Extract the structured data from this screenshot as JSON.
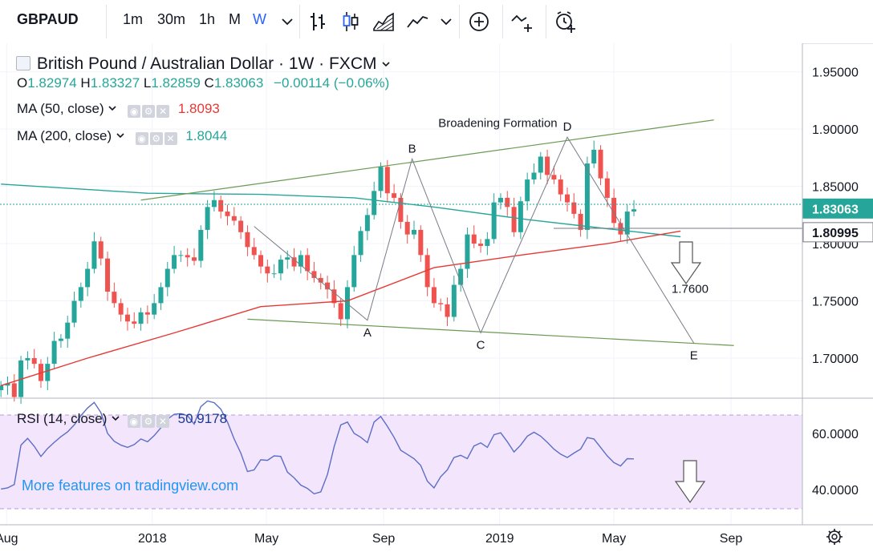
{
  "toolbar": {
    "symbol": "GBPAUD",
    "intervals": [
      "1m",
      "30m",
      "1h",
      "M",
      "W"
    ],
    "active_interval": "W",
    "icons": [
      "chevron-down-icon",
      "bar-chart-icon",
      "candles-icon",
      "area-chart-icon",
      "line-chart-icon",
      "chevron-down-icon",
      "add-indicator-icon",
      "compare-icon",
      "alert-icon"
    ]
  },
  "header": {
    "title": "British Pound / Australian Dollar · 1W · FXCM",
    "ohlc": {
      "o_label": "O",
      "o": "1.82974",
      "h_label": "H",
      "h": "1.83327",
      "l_label": "L",
      "l": "1.82859",
      "c_label": "C",
      "c": "1.83063",
      "change": "−0.00114 (−0.06%)"
    },
    "ma50_label": "MA (50, close)",
    "ma50_value": "1.8093",
    "ma200_label": "MA (200, close)",
    "ma200_value": "1.8044",
    "rsi_label": "RSI (14, close)",
    "rsi_value": "50.9178"
  },
  "watermark": "More features on tradingview.com",
  "colors": {
    "up": "#26a69a",
    "down": "#ef5350",
    "ma50": "#e53935",
    "ma200": "#26a69a",
    "rsi": "#5b6ec7",
    "rsi_band": "#f3e5fb",
    "trend": "#6b9a53",
    "watermark": "#2196f3"
  },
  "chart_data": [
    {
      "type": "candlestick",
      "title": "British Pound / Australian Dollar · 1W · FXCM",
      "y_ticks": [
        "1.95000",
        "1.90000",
        "1.85000",
        "1.80000",
        "1.75000",
        "1.70000"
      ],
      "y_tick_values": [
        1.95,
        1.9,
        1.85,
        1.8,
        1.75,
        1.7
      ],
      "ylim": [
        1.665,
        1.975
      ],
      "x_ticks": [
        "Aug",
        "2018",
        "May",
        "Sep",
        "2019",
        "May",
        "Sep"
      ],
      "x_tick_dates": [
        "2017-08-01",
        "2018-01-01",
        "2018-05-01",
        "2018-09-01",
        "2019-01-01",
        "2019-05-01",
        "2019-09-01"
      ],
      "xlim": [
        "2017-07-25",
        "2019-11-15"
      ],
      "price_labels": [
        {
          "text": "1.83063",
          "value": 1.83063,
          "color": "#26a69a"
        },
        {
          "text": "1.80995",
          "value": 1.80995,
          "color": "#ffffff"
        }
      ],
      "annotations": {
        "title": "Broadening Formation",
        "points": [
          {
            "label": "A",
            "date": "2018-08-15",
            "value": 1.733
          },
          {
            "label": "B",
            "date": "2018-10-01",
            "value": 1.874
          },
          {
            "label": "C",
            "date": "2018-12-12",
            "value": 1.722
          },
          {
            "label": "D",
            "date": "2019-03-13",
            "value": 1.893
          },
          {
            "label": "E",
            "date": "2019-07-24",
            "value": 1.713
          }
        ],
        "target_label": "1.7600",
        "resistance_line": [
          {
            "date": "2017-12-20",
            "value": 1.838
          },
          {
            "date": "2019-08-14",
            "value": 1.908
          }
        ],
        "support_line": [
          {
            "date": "2018-04-11",
            "value": 1.734
          },
          {
            "date": "2019-09-04",
            "value": 1.711
          }
        ]
      },
      "ma50": [
        [
          "2017-07-26",
          1.676
        ],
        [
          "2017-10-25",
          1.7
        ],
        [
          "2018-01-24",
          1.722
        ],
        [
          "2018-04-25",
          1.745
        ],
        [
          "2018-07-25",
          1.75
        ],
        [
          "2018-10-24",
          1.779
        ],
        [
          "2019-01-23",
          1.79
        ],
        [
          "2019-04-24",
          1.8
        ],
        [
          "2019-07-10",
          1.811
        ]
      ],
      "ma200": [
        [
          "2017-07-26",
          1.852
        ],
        [
          "2017-12-27",
          1.844
        ],
        [
          "2018-04-25",
          1.843
        ],
        [
          "2018-08-01",
          1.84
        ],
        [
          "2018-10-24",
          1.832
        ],
        [
          "2019-01-30",
          1.821
        ],
        [
          "2019-04-24",
          1.813
        ],
        [
          "2019-07-10",
          1.806
        ]
      ],
      "ohlc_weekly_close": [
        1.676,
        1.678,
        1.666,
        1.698,
        1.7,
        1.695,
        1.68,
        1.695,
        1.715,
        1.717,
        1.731,
        1.75,
        1.762,
        1.778,
        1.802,
        1.787,
        1.758,
        1.748,
        1.738,
        1.732,
        1.73,
        1.74,
        1.738,
        1.748,
        1.762,
        1.778,
        1.79,
        1.79,
        1.788,
        1.785,
        1.812,
        1.832,
        1.838,
        1.828,
        1.824,
        1.82,
        1.81,
        1.797,
        1.79,
        1.78,
        1.774,
        1.774,
        1.786,
        1.788,
        1.78,
        1.79,
        1.776,
        1.77,
        1.766,
        1.76,
        1.748,
        1.734,
        1.762,
        1.79,
        1.811,
        1.825,
        1.846,
        1.867,
        1.844,
        1.84,
        1.819,
        1.808,
        1.812,
        1.79,
        1.762,
        1.748,
        1.747,
        1.736,
        1.764,
        1.778,
        1.808,
        1.8,
        1.798,
        1.804,
        1.836,
        1.84,
        1.832,
        1.81,
        1.837,
        1.856,
        1.862,
        1.876,
        1.86,
        1.856,
        1.843,
        1.836,
        1.826,
        1.812,
        1.87,
        1.882,
        1.857,
        1.84,
        1.818,
        1.808,
        1.828,
        1.83
      ]
    },
    {
      "type": "line",
      "title": "RSI (14, close)",
      "y_ticks": [
        "60.0000",
        "40.0000"
      ],
      "y_tick_values": [
        60,
        40
      ],
      "ylim": [
        27.5,
        72.5
      ],
      "band": [
        30,
        70
      ],
      "values": [
        40.2,
        40.6,
        41.8,
        55.8,
        58.2,
        55.4,
        51.8,
        54.6,
        56.8,
        58.8,
        60.5,
        63.0,
        66.3,
        69.0,
        71.0,
        67.4,
        60.0,
        57.2,
        55.8,
        55.0,
        56.0,
        58.0,
        57.0,
        59.2,
        62.0,
        65.0,
        66.8,
        67.0,
        66.3,
        63.3,
        69.5,
        71.5,
        70.9,
        68.6,
        64.0,
        58.0,
        53.0,
        46.4,
        47.0,
        50.6,
        50.4,
        52.0,
        51.8,
        46.2,
        44.2,
        41.6,
        40.4,
        38.5,
        39.2,
        45.4,
        55.2,
        63.0,
        64.0,
        60.0,
        58.6,
        56.7,
        64.0,
        66.0,
        62.5,
        58.6,
        54.0,
        52.5,
        51.0,
        48.6,
        43.0,
        40.6,
        44.6,
        47.0,
        51.4,
        52.2,
        51.0,
        55.5,
        56.6,
        55.0,
        59.5,
        60.2,
        57.0,
        53.4,
        55.8,
        59.0,
        60.4,
        59.0,
        56.8,
        54.4,
        52.6,
        51.4,
        53.0,
        54.4,
        58.5,
        58.0,
        55.0,
        52.0,
        49.6,
        48.4,
        51.0,
        50.9
      ]
    }
  ]
}
